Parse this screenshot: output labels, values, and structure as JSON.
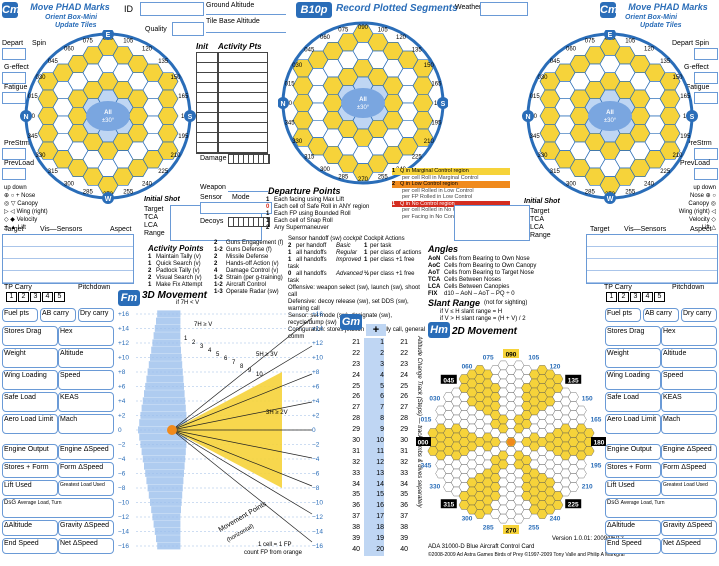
{
  "left_panel": {
    "tag": "Cm",
    "title": "Move PHAD Marks",
    "subtitle1": "Orient Box-Mini",
    "subtitle2": "Update Tiles",
    "depart_label": "Depart",
    "spin_label": "Spin",
    "geffect_label": "G-effect",
    "fatigue_label": "Fatigue",
    "prestrm_label": "PreStrm",
    "prevload_label": "PrevLoad",
    "up_down": "up  down",
    "nose": "Nose",
    "canopy": "Canopy",
    "wing_right": "Wing (right)",
    "velocity": "Velocity",
    "velocity_note": "(when pointing)",
    "lift": "Lift",
    "lift_note": "(when pointing)",
    "compass": [
      "N",
      "S",
      "E",
      "W"
    ],
    "ring_outer": [
      "075",
      "105",
      "045",
      "135",
      "015",
      "165",
      "345",
      "195",
      "315",
      "225",
      "285",
      "255"
    ],
    "ring_inner": [
      "090",
      "060",
      "120",
      "030",
      "150",
      "000",
      "180",
      "330",
      "210",
      "300",
      "240",
      "270",
      "000"
    ],
    "cells": [
      "090E",
      "060E",
      "120E",
      "030E",
      "150E",
      "180E",
      "330E",
      "210E",
      "300E",
      "240E",
      "270E",
      "All",
      "±30°",
      "±60°"
    ],
    "initial_shot": "Initial Shot",
    "target": "Target",
    "tca": "TCA",
    "lca": "LCA",
    "range": "Range",
    "target_vis": "Target",
    "vis_sensors": "Vis—Sensors",
    "aspect": "Aspect",
    "tp_carry": "TP Carry",
    "pitchdown": "Pitchdown",
    "numbers": [
      "1",
      "2",
      "3",
      "4",
      "5"
    ],
    "fuel_pts": "Fuel pts",
    "ab_carry": "AB carry",
    "dry_carry": "Dry carry",
    "stores_drag": "Stores Drag",
    "hex": "Hex",
    "weight": "Weight",
    "altitude": "Altitude",
    "wing_loading": "Wing Loading",
    "speed": "Speed",
    "safe_load": "Safe Load",
    "keas": "KEAS",
    "aero_load_limit": "Aero Load Limit",
    "mach": "Mach",
    "engine_output": "Engine Output",
    "engine_speed": "Engine ΔSpeed",
    "stores_form": "Stores + Form",
    "form_speed": "Form ΔSpeed",
    "lift_used": "Lift Used",
    "greatest_load": "Greatest Load Used",
    "dsg": "DsG",
    "avg_load_turn": "Average Load, Turn",
    "dsg_speed": "(ΔSpeed)",
    "d_altitude": "ΔAltitude",
    "gravity_speed": "Gravity ΔSpeed",
    "end_speed": "End Speed",
    "net_speed": "Net ΔSpeed"
  },
  "top_center": {
    "id_label": "ID",
    "ground_altitude": "Ground Altitude",
    "quality": "Quality",
    "tile_base": "Tile Base Altitude",
    "b_tag": "B10p",
    "record_title": "Record Plotted Segments",
    "weather": "Weather",
    "init": "Init",
    "activity_pts": "Activity Pts",
    "damage": "Damage",
    "weapon": "Weapon",
    "sensor": "Sensor",
    "mode": "Mode",
    "decoys": "Decoys",
    "departure_title": "Departure Points",
    "dep_rows": [
      [
        "1",
        "Each facing using Max Lift"
      ],
      [
        "0",
        "Each cell of Safe Roll in ANY region"
      ],
      [
        "1",
        "Each FP using Bounded Roll"
      ],
      [
        "1",
        "Each cell of Snap Roll"
      ],
      [
        "2",
        "Any Supermaneuver"
      ]
    ],
    "control_rows": [
      [
        "1",
        "Q in Marginal Control region",
        "per cell Roll in Marginal Control"
      ],
      [
        "2",
        "Q in Low Control region",
        "per cell Rolled in Low Control"
      ],
      [
        "3",
        "Q in Low Control region",
        "per FP Rolled in Low Control"
      ],
      [
        "1",
        "Q in No Control region",
        "per cell Rolled in No Control"
      ],
      [
        "2",
        "Q in No Control region",
        "per Facing in No Control"
      ]
    ],
    "activity_title": "Activity Points",
    "activity_rows": [
      [
        "1",
        "Maintain Tally (v)"
      ],
      [
        "1",
        "Quick Search (v)"
      ],
      [
        "2",
        "Padlock Tally (v)"
      ],
      [
        "2",
        "Visual Search (v)"
      ],
      [
        "1",
        "Make Fix Attempt"
      ]
    ],
    "activity_rows2": [
      [
        "2",
        "Guns Engagement (f)"
      ],
      [
        "1-2",
        "Guns Defense (f)"
      ],
      [
        "2",
        "Missile Defense"
      ],
      [
        "2",
        "Hands-off Action (v)"
      ],
      [
        "4",
        "Damage Control (v)"
      ],
      [
        "1-2",
        "Strain (per g-training)"
      ],
      [
        "1-2",
        "Aircraft Control"
      ],
      [
        "1-3",
        "Operate Radar (sw)"
      ]
    ],
    "sensor_header": [
      "Sensor handoff (sw)",
      "cockpit",
      "Cockpit Actions"
    ],
    "sensor_rows": [
      [
        "2",
        "per handoff",
        "Basic",
        "1",
        "per task"
      ],
      [
        "1",
        "all handoffs",
        "Regular",
        "1",
        "per class of actions"
      ],
      [
        "1",
        "all handoffs",
        "Improved",
        "1",
        "per class +1 free task"
      ],
      [
        "0",
        "all handoffs",
        "Advanced",
        "½",
        "per class +1 free task"
      ]
    ],
    "offensive": "Offensive: weapon select (sw), launch (sw), shoot call",
    "defensive": "Defensive: decoy release (sw), set DDS (sw), warning call",
    "sensor_mode": "Sensor: set mode (sw), designate (sw), recycle/dump (sw)",
    "config": "Configuration: stores jettison (sw), tally call, general comm",
    "angles_title": "Angles",
    "angles": [
      [
        "AoN",
        "Cells from Bearing to Own Nose"
      ],
      [
        "AoC",
        "Cells from Bearing to Own Canopy"
      ],
      [
        "AoT",
        "Cells from Bearing to Target Nose"
      ],
      [
        "TCA",
        "Cells Between Noses"
      ],
      [
        "LCA",
        "Cells Between Canopies"
      ],
      [
        "FIX",
        "d10 – AoN – AoT – PQ ÷ 0"
      ]
    ],
    "slant_title": "Slant Range",
    "slant_note": "(not for sighting)",
    "slant1": "if V ≤ H  slant range = H",
    "slant2": "if V > H  slant range = (H + V) / 2"
  },
  "movement3d": {
    "tag": "Fm",
    "title": "3D Movement",
    "subtitle": "if 7H < V",
    "left_ticks": [
      "+16",
      "+14",
      "+12",
      "+10",
      "+8",
      "+6",
      "+4",
      "+2",
      "0",
      "−2",
      "−4",
      "−6",
      "−8",
      "−10",
      "−12",
      "−14",
      "−16"
    ],
    "right_ticks": [
      "+16",
      "+14",
      "+12",
      "+10",
      "+8",
      "+6",
      "+4",
      "+2",
      "0",
      "−2",
      "−4",
      "−6",
      "−8",
      "−10",
      "−12",
      "−14",
      "−16"
    ],
    "altitude_axis": "Altitude Change (Steps)",
    "zones": [
      "7H ≥ V",
      "5H ≥ 3V",
      "3H ≥ 2V"
    ],
    "movement_points": "Movement Points",
    "horizontal": "(horizontal)",
    "footer1": "1 cell = 1 FP",
    "footer2": "count FP from orange",
    "mp_numbers": [
      "1",
      "2",
      "3",
      "4",
      "5",
      "6",
      "7",
      "8",
      "9",
      "10",
      "11",
      "12",
      "13",
      "14",
      "15",
      "16",
      "17",
      "18",
      "19",
      "20"
    ]
  },
  "gm": {
    "tag": "Gm",
    "plus": "+",
    "col_left": [
      "21",
      "22",
      "23",
      "24",
      "25",
      "26",
      "27",
      "28",
      "29",
      "30",
      "31",
      "32",
      "33",
      "34",
      "35",
      "36",
      "37",
      "38",
      "39",
      "40"
    ],
    "col_mid": [
      "1",
      "2",
      "3",
      "4",
      "5",
      "6",
      "7",
      "8",
      "9",
      "10",
      "11",
      "12",
      "13",
      "14",
      "15",
      "16",
      "17",
      "18",
      "19",
      "20"
    ],
    "col_right": [
      "21",
      "22",
      "23",
      "24",
      "25",
      "26",
      "27",
      "28",
      "29",
      "30",
      "31",
      "32",
      "33",
      "34",
      "35",
      "36",
      "37",
      "38",
      "39",
      "40"
    ],
    "track": "Altitude Change Track (Steps) — track climbs & dives separately"
  },
  "movement2d": {
    "tag": "Hm",
    "title": "2D Movement",
    "top": "090",
    "bottom": "270",
    "labels": [
      "060",
      "075",
      "105",
      "120",
      "045",
      "135",
      "150",
      "030",
      "015",
      "165",
      "000",
      "180",
      "345",
      "195",
      "330",
      "210",
      "315",
      "225",
      "300",
      "285",
      "255",
      "240"
    ],
    "version": "Version 1.0.01: 2009/06/12",
    "card": "ADA 31000-D  Blue Aircraft Control Card",
    "copyright": "©2008-2009 Ad Astra Games  Birds of Prey ©1997-2009 Tony Valle and Philip A Markgraf"
  },
  "right_panel": {
    "tag": "Cm",
    "title": "Move PHAD Marks",
    "subtitle1": "Orient Box-Mini",
    "subtitle2": "Update Tiles",
    "depart_label": "Depart",
    "spin_label": "Spin"
  },
  "colors": {
    "blue": "#2a6db8",
    "light_blue": "#bfd6f3",
    "yellow": "#f6d33a",
    "orange": "#f08a1c",
    "red": "#d42d20"
  }
}
